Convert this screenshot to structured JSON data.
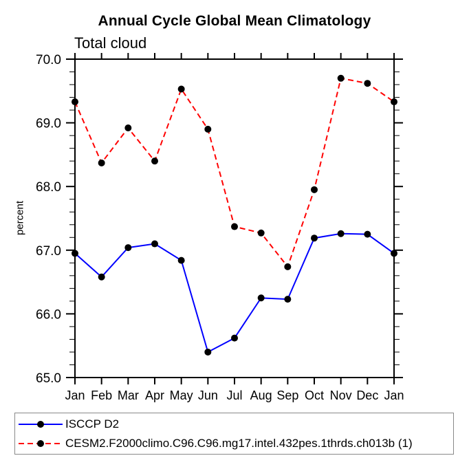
{
  "chart_data": {
    "type": "line",
    "title": "Annual Cycle Global Mean Climatology",
    "left_subtitle": "Total cloud",
    "ylabel": "percent",
    "categories": [
      "Jan",
      "Feb",
      "Mar",
      "Apr",
      "May",
      "Jun",
      "Jul",
      "Aug",
      "Sep",
      "Oct",
      "Nov",
      "Dec",
      "Jan"
    ],
    "ylim": [
      65.0,
      70.0
    ],
    "ytick_major_step": 1.0,
    "ytick_minor_step": 0.2,
    "ytick_labels": [
      "65.0",
      "66.0",
      "67.0",
      "68.0",
      "69.0",
      "70.0"
    ],
    "grid": false,
    "legend_position": "bottom-left",
    "marker": {
      "shape": "circle",
      "color": "#000000",
      "radius": 5
    },
    "series": [
      {
        "name": "ISCCP D2",
        "color": "#0000ff",
        "line_style": "solid",
        "values": [
          66.95,
          66.58,
          67.04,
          67.1,
          66.84,
          65.4,
          65.62,
          66.25,
          66.23,
          67.19,
          67.26,
          67.25,
          66.95
        ]
      },
      {
        "name": "CESM2.F2000climo.C96.C96.mg17.intel.432pes.1thrds.ch013b (1)",
        "color": "#ff0000",
        "line_style": "dashed",
        "values": [
          69.33,
          68.37,
          68.92,
          68.4,
          69.53,
          68.9,
          67.37,
          67.27,
          66.74,
          67.95,
          69.7,
          69.62,
          69.33
        ]
      }
    ]
  },
  "colors": {
    "axis": "#000000",
    "text": "#000000",
    "legend_border": "#888888",
    "background": "#ffffff"
  }
}
